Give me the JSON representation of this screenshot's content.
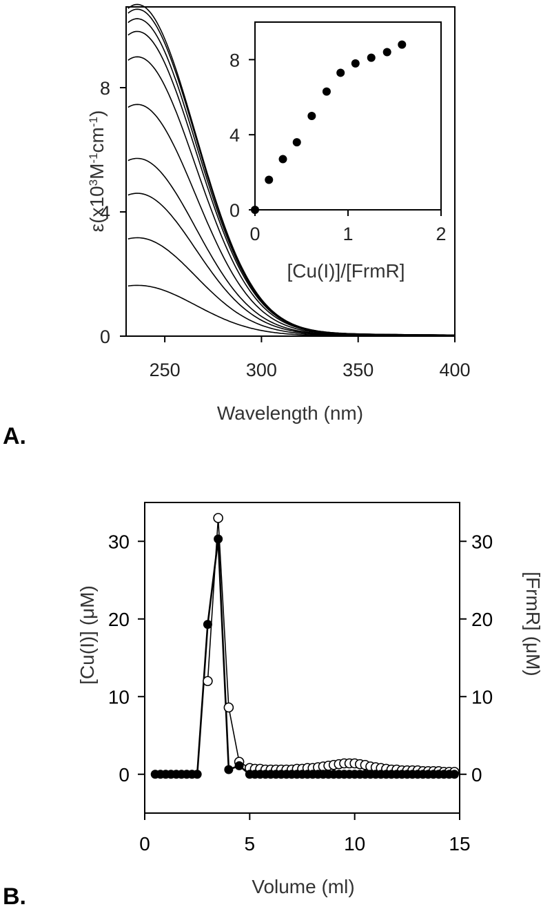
{
  "panels": {
    "a": {
      "label": "A.",
      "ylabel": "ε(x10³M⁻¹cm⁻¹)",
      "ylabel_parts": {
        "base": "ε(x10",
        "exp1": "3",
        "mid1": "M",
        "exp2": "-1",
        "mid2": "cm",
        "exp3": "-1",
        "end": ")"
      },
      "xlabel": "Wavelength (nm)",
      "inset_xlabel": "[Cu(I)]/[FrmR]"
    },
    "b": {
      "label": "B.",
      "ylabel_left": "[Cu(I)] (μM)",
      "ylabel_right": "[FrmR] (μM)",
      "xlabel": "Volume (ml)"
    }
  },
  "chart_data": [
    {
      "type": "line",
      "title": "",
      "xlabel": "Wavelength (nm)",
      "ylabel": "ε(x10³M⁻¹cm⁻¹)",
      "xlim": [
        230,
        400
      ],
      "ylim": [
        0,
        10.6
      ],
      "xticks": [
        250,
        300,
        350,
        400
      ],
      "yticks": [
        0,
        4,
        8
      ],
      "grid": false,
      "legend": "none",
      "curve_model": {
        "peak_wavelength": 236,
        "gaussian_sigma_nm": 30,
        "tail_fraction": 0.022,
        "tail_decay_nm": 90
      },
      "series": [
        {
          "peak": 1.6
        },
        {
          "peak": 3.1
        },
        {
          "peak": 4.5
        },
        {
          "peak": 5.6
        },
        {
          "peak": 7.3
        },
        {
          "peak": 8.8
        },
        {
          "peak": 9.6
        },
        {
          "peak": 10.0
        },
        {
          "peak": 10.3
        },
        {
          "peak": 10.45
        }
      ]
    },
    {
      "type": "scatter",
      "title": "",
      "inset_of": 0,
      "xlabel": "[Cu(I)]/[FrmR]",
      "ylabel": "",
      "xlim": [
        0,
        2
      ],
      "ylim": [
        0,
        10
      ],
      "xticks": [
        0,
        1,
        2
      ],
      "yticks": [
        0,
        4,
        8
      ],
      "grid": false,
      "points": [
        {
          "x": 0.0,
          "y": 0.0
        },
        {
          "x": 0.15,
          "y": 1.6
        },
        {
          "x": 0.3,
          "y": 2.7
        },
        {
          "x": 0.45,
          "y": 3.6
        },
        {
          "x": 0.61,
          "y": 5.0
        },
        {
          "x": 0.77,
          "y": 6.3
        },
        {
          "x": 0.92,
          "y": 7.3
        },
        {
          "x": 1.08,
          "y": 7.8
        },
        {
          "x": 1.25,
          "y": 8.1
        },
        {
          "x": 1.42,
          "y": 8.4
        },
        {
          "x": 1.58,
          "y": 8.8
        }
      ]
    },
    {
      "type": "line",
      "title": "",
      "xlabel": "Volume (ml)",
      "ylabel": "[Cu(I)] (μM)",
      "ylabel_right": "[FrmR] (μM)",
      "xlim": [
        0,
        15
      ],
      "ylim": [
        -5,
        35
      ],
      "xticks": [
        0,
        5,
        10,
        15
      ],
      "yticks": [
        0,
        10,
        20,
        30
      ],
      "yticks_right": [
        0,
        10,
        20,
        30
      ],
      "grid": false,
      "legend": "none",
      "series": [
        {
          "marker": "filled",
          "axis": "left",
          "x": [
            0.5,
            0.75,
            1.0,
            1.25,
            1.5,
            1.75,
            2.0,
            2.25,
            2.5,
            3.0,
            3.5,
            4.0,
            4.5,
            5.0,
            5.25,
            5.5,
            5.75,
            6.0,
            6.25,
            6.5,
            6.75,
            7.0,
            7.25,
            7.5,
            7.75,
            8.0,
            8.25,
            8.5,
            8.75,
            9.0,
            9.25,
            9.5,
            9.75,
            10.0,
            10.25,
            10.5,
            10.75,
            11.0,
            11.25,
            11.5,
            11.75,
            12.0,
            12.25,
            12.5,
            12.75,
            13.0,
            13.25,
            13.5,
            13.75,
            14.0,
            14.25,
            14.5,
            14.75
          ],
          "y": [
            0,
            0,
            0,
            0,
            0,
            0,
            0,
            0,
            0,
            19.3,
            30.3,
            0.6,
            1.1,
            0,
            0,
            0,
            0,
            0,
            0,
            0,
            0,
            0,
            0,
            0,
            0,
            0,
            0,
            0,
            0,
            0,
            0,
            0,
            0,
            0,
            0,
            0,
            0,
            0,
            0,
            0,
            0,
            0,
            0,
            0,
            0,
            0,
            0,
            0,
            0,
            0,
            0,
            0,
            0
          ]
        },
        {
          "marker": "open",
          "axis": "right",
          "x": [
            3.0,
            3.5,
            4.0,
            4.5,
            5.0,
            5.25,
            5.5,
            5.75,
            6.0,
            6.25,
            6.5,
            6.75,
            7.0,
            7.25,
            7.5,
            7.75,
            8.0,
            8.25,
            8.5,
            8.75,
            9.0,
            9.25,
            9.5,
            9.75,
            10.0,
            10.25,
            10.5,
            10.75,
            11.0,
            11.25,
            11.5,
            11.75,
            12.0,
            12.25,
            12.5,
            12.75,
            13.0,
            13.25,
            13.5,
            13.75,
            14.0,
            14.25,
            14.5,
            14.75
          ],
          "y": [
            12.0,
            33.0,
            8.6,
            1.6,
            0.8,
            0.7,
            0.7,
            0.6,
            0.6,
            0.6,
            0.6,
            0.6,
            0.6,
            0.7,
            0.7,
            0.8,
            0.8,
            0.9,
            1.0,
            1.1,
            1.2,
            1.3,
            1.4,
            1.4,
            1.4,
            1.3,
            1.2,
            1.0,
            0.9,
            0.8,
            0.7,
            0.6,
            0.6,
            0.5,
            0.5,
            0.5,
            0.5,
            0.4,
            0.4,
            0.4,
            0.4,
            0.3,
            0.3,
            0.3
          ]
        }
      ]
    }
  ]
}
